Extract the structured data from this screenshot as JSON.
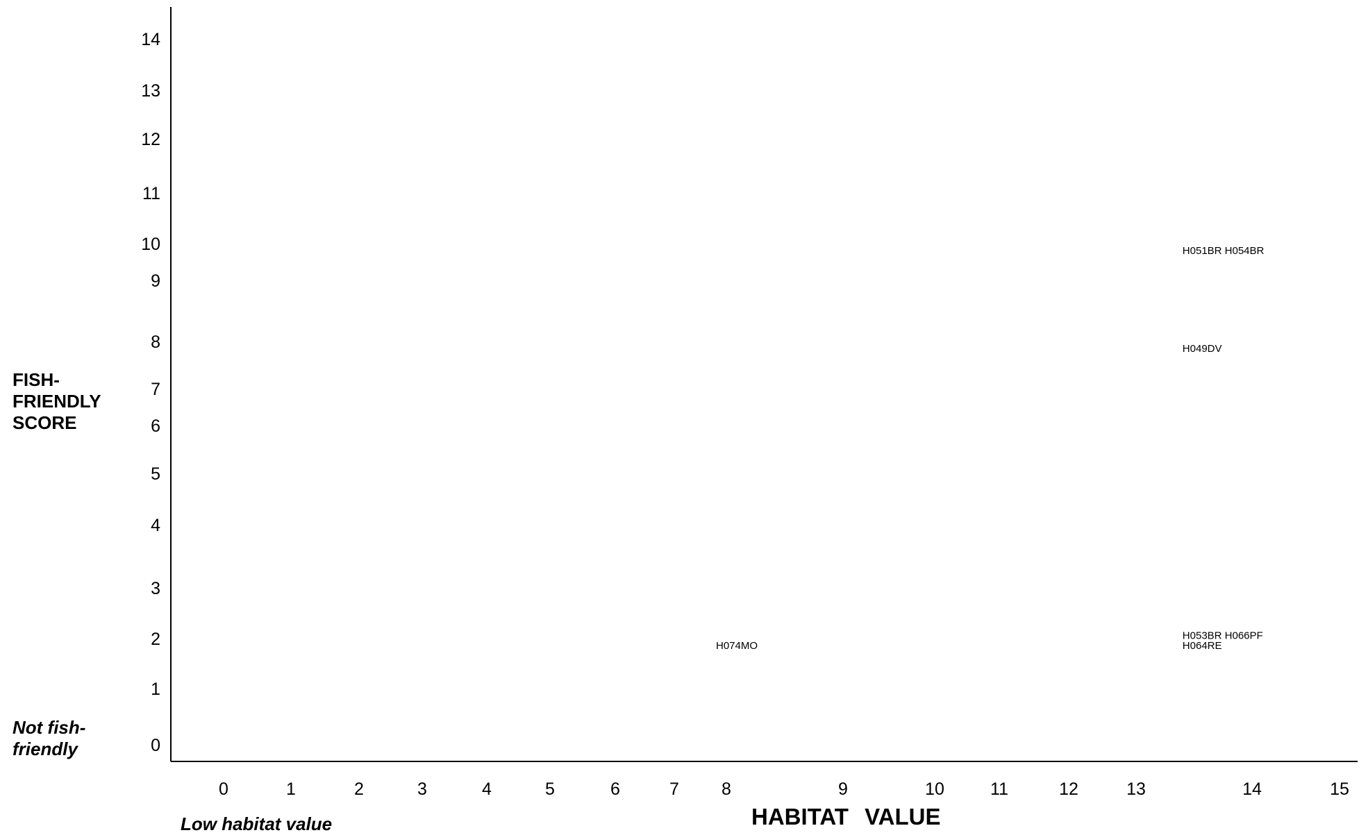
{
  "chart_data": {
    "type": "scatter",
    "title": "",
    "xlabel": "HABITAT VALUE",
    "ylabel_lines": [
      "FISH-",
      "FRIENDLY",
      "SCORE"
    ],
    "x_low_annotation": "Low habitat value",
    "y_low_annotation_lines": [
      "Not fish-",
      "friendly"
    ],
    "xlim": [
      0,
      15
    ],
    "ylim": [
      0,
      14
    ],
    "x_ticks": [
      "0",
      "1",
      "2",
      "3",
      "4",
      "5",
      "6",
      "7",
      "8",
      "9",
      "10",
      "11",
      "12",
      "13",
      "14",
      "15"
    ],
    "y_ticks": [
      "0",
      "1",
      "2",
      "3",
      "4",
      "5",
      "6",
      "7",
      "8",
      "9",
      "10",
      "11",
      "12",
      "13",
      "14"
    ],
    "grid": false,
    "points": [
      {
        "label": "H051BR H054BR",
        "x": 13.4,
        "y": 10
      },
      {
        "label": "H049DV",
        "x": 13.4,
        "y": 8
      },
      {
        "label": "H053BR H066PF",
        "x": 13.4,
        "y": 2.2
      },
      {
        "label": "H064RE",
        "x": 13.4,
        "y": 2
      },
      {
        "label": "H074MO",
        "x": 7.8,
        "y": 2
      }
    ]
  }
}
